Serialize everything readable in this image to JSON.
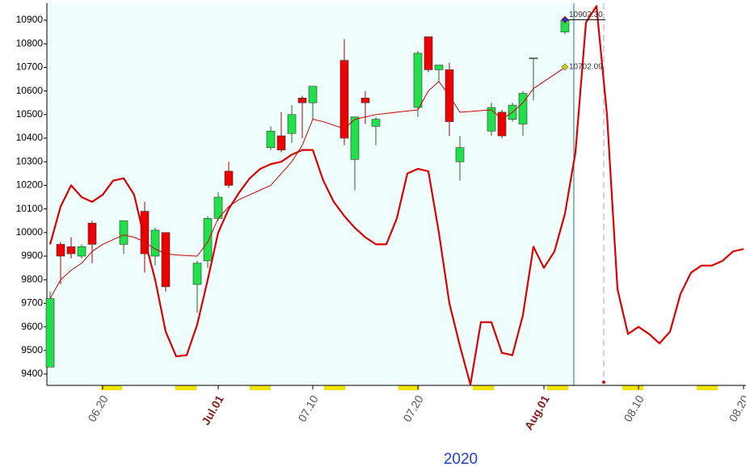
{
  "chart_data": {
    "type": "candlestick",
    "x_label": "2020",
    "categories": [
      null,
      null,
      null,
      null,
      null,
      "06.20",
      null,
      null,
      null,
      null,
      null,
      null,
      null,
      null,
      null,
      null,
      "Jul.01",
      null,
      null,
      null,
      null,
      null,
      null,
      null,
      null,
      "07.10",
      null,
      null,
      null,
      null,
      null,
      null,
      null,
      null,
      null,
      "07.20",
      null,
      null,
      null,
      null,
      null,
      null,
      null,
      null,
      null,
      null,
      null,
      "Aug.01",
      null,
      null,
      null,
      null,
      null,
      null,
      null,
      null,
      "08.10",
      null,
      null,
      null,
      null,
      null,
      null,
      null,
      null,
      null,
      "08.20"
    ],
    "ohlc": {
      "open": [
        9430,
        9950,
        9940,
        9900,
        10040,
        null,
        null,
        9950,
        null,
        10090,
        9900,
        10000,
        null,
        null,
        9780,
        9880,
        10060,
        10260,
        null,
        null,
        null,
        10360,
        10410,
        10420,
        10570,
        10550,
        null,
        null,
        10730,
        10310,
        10570,
        10450,
        null,
        null,
        null,
        10530,
        10830,
        10690,
        10690,
        10300,
        null,
        null,
        10430,
        10510,
        10480,
        10460,
        10740,
        null,
        null,
        10850,
        null,
        null,
        null,
        null,
        null,
        null,
        null,
        null,
        null,
        null,
        null,
        null,
        null,
        null,
        null,
        null,
        null
      ],
      "high": [
        9750,
        9960,
        9980,
        9950,
        10050,
        null,
        null,
        10050,
        null,
        10130,
        10020,
        10000,
        null,
        null,
        9880,
        10070,
        10170,
        10300,
        null,
        null,
        null,
        10450,
        10510,
        10540,
        10580,
        10620,
        null,
        null,
        10820,
        10490,
        10600,
        10490,
        null,
        null,
        null,
        10770,
        10830,
        10710,
        10720,
        10410,
        null,
        null,
        10550,
        10520,
        10550,
        10600,
        10740,
        null,
        null,
        10910,
        null,
        null,
        null,
        null,
        null,
        null,
        null,
        null,
        null,
        null,
        null,
        null,
        null,
        null,
        null,
        null,
        null
      ],
      "low": [
        9430,
        9780,
        9890,
        9890,
        9870,
        null,
        null,
        9910,
        null,
        9830,
        9860,
        9750,
        null,
        null,
        9660,
        9850,
        10050,
        10190,
        null,
        null,
        null,
        10350,
        10340,
        10380,
        10400,
        10480,
        null,
        null,
        10370,
        10180,
        10460,
        10370,
        null,
        null,
        null,
        10490,
        10680,
        10640,
        10410,
        10220,
        null,
        null,
        10410,
        10400,
        10470,
        10410,
        10560,
        null,
        null,
        10840,
        null,
        null,
        null,
        null,
        null,
        null,
        null,
        null,
        null,
        null,
        null,
        null,
        null,
        null,
        null,
        null,
        null
      ],
      "close": [
        9720,
        9900,
        9910,
        9940,
        9950,
        null,
        null,
        10050,
        null,
        9910,
        10010,
        9770,
        null,
        null,
        9870,
        10060,
        10150,
        10200,
        null,
        null,
        null,
        10430,
        10350,
        10500,
        10550,
        10620,
        null,
        null,
        10400,
        10490,
        10550,
        10480,
        null,
        null,
        null,
        10760,
        10690,
        10710,
        10470,
        10360,
        null,
        null,
        10530,
        10410,
        10540,
        10590,
        10740,
        null,
        null,
        10900,
        null,
        null,
        null,
        null,
        null,
        null,
        null,
        null,
        null,
        null,
        null,
        null,
        null,
        null,
        null,
        null,
        null
      ]
    },
    "up_color": "#22e04a",
    "down_color": "#ee0000",
    "lines": [
      {
        "color": "#dd0000",
        "line_width": 2.2,
        "values": [
          9950,
          10110,
          10200,
          10150,
          10130,
          10160,
          10220,
          10230,
          10160,
          9970,
          9800,
          9580,
          9475,
          9480,
          9610,
          9800,
          10000,
          10100,
          10170,
          10230,
          10270,
          10290,
          10300,
          10330,
          10350,
          10350,
          10220,
          10130,
          10070,
          10020,
          9980,
          9950,
          9950,
          10060,
          10250,
          10270,
          10260,
          10000,
          9700,
          9520,
          9355,
          9620,
          9620,
          9490,
          9480,
          9650,
          9940,
          9850,
          9920,
          10080,
          10340,
          10890,
          10960,
          10500,
          9760,
          9570,
          9600,
          9570,
          9530,
          9580,
          9740,
          9830,
          9860,
          9860,
          9880,
          9920,
          9930
        ]
      },
      {
        "color": "#cc0000",
        "line_width": 1,
        "values": [
          9720,
          9800,
          9840,
          9870,
          9920,
          9950,
          9970,
          9990,
          9980,
          9960,
          9930,
          9910,
          9905,
          9902,
          9900,
          9960,
          10060,
          10110,
          10140,
          10160,
          10180,
          10200,
          10250,
          10300,
          10370,
          10480,
          10470,
          10455,
          10440,
          10480,
          10490,
          10500,
          10505,
          10510,
          10515,
          10520,
          10600,
          10640,
          10580,
          10510,
          10513,
          10517,
          10520,
          10480,
          10510,
          10550,
          10610,
          10640,
          10670,
          10700,
          null,
          null,
          null,
          null,
          null,
          null,
          null,
          null,
          null,
          null,
          null,
          null,
          null,
          null,
          null,
          null,
          null
        ]
      }
    ],
    "annotations": [
      {
        "value": 10902.3,
        "label": "10902.30",
        "color": "#2233cc"
      },
      {
        "value": 10702.09,
        "label": "10702.09",
        "color": "#cccc00"
      }
    ],
    "ylim": [
      9352,
      10972
    ],
    "yticks": [
      9400,
      9500,
      9600,
      9700,
      9800,
      9900,
      10000,
      10100,
      10200,
      10300,
      10400,
      10500,
      10600,
      10700,
      10800,
      10900
    ]
  }
}
